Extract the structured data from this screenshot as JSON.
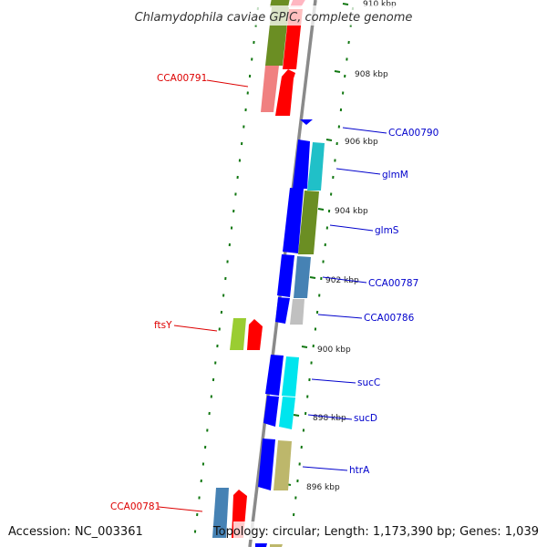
{
  "title": "Chlamydophila caviae GPIC, complete genome",
  "footer": {
    "accession": "Accession: NC_003361",
    "topology": "Topology: circular; Length: 1,173,390 bp; Genes: 1,039"
  },
  "colors": {
    "forward_label": "#0000cc",
    "reverse_label": "#dd0000",
    "backbone": "#888888",
    "tick": "#117711"
  },
  "scale_labels": [
    "910 kbp",
    "908 kbp",
    "906 kbp",
    "904 kbp",
    "902 kbp",
    "900 kbp",
    "898 kbp",
    "896 kbp"
  ],
  "gene_labels": [
    {
      "name": "CCA00791",
      "strand": "reverse"
    },
    {
      "name": "CCA00790",
      "strand": "forward"
    },
    {
      "name": "glmM",
      "strand": "forward"
    },
    {
      "name": "glmS",
      "strand": "forward"
    },
    {
      "name": "CCA00787",
      "strand": "forward"
    },
    {
      "name": "CCA00786",
      "strand": "forward"
    },
    {
      "name": "ftsY",
      "strand": "reverse"
    },
    {
      "name": "sucC",
      "strand": "forward"
    },
    {
      "name": "sucD",
      "strand": "forward"
    },
    {
      "name": "htrA",
      "strand": "forward"
    },
    {
      "name": "CCA00781",
      "strand": "reverse"
    }
  ]
}
